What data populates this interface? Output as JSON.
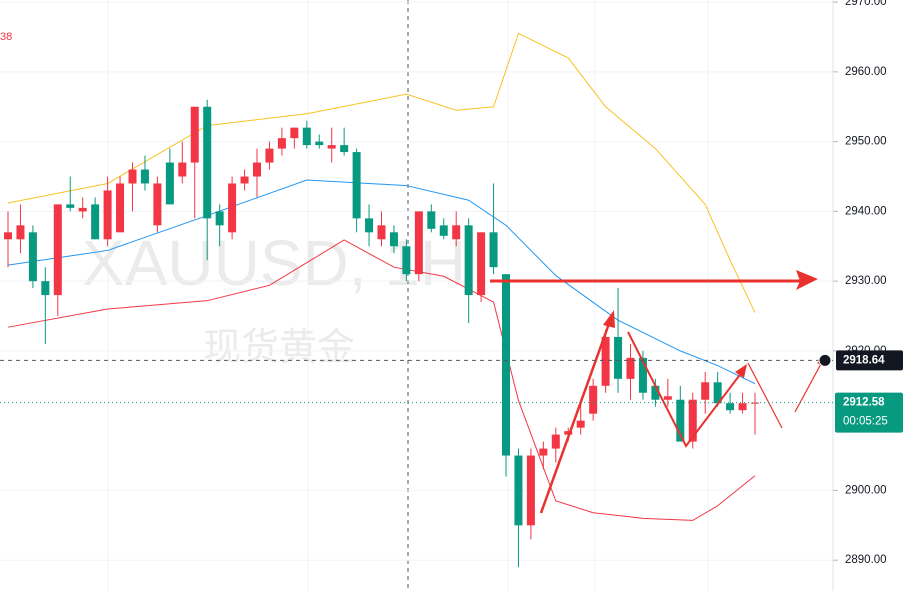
{
  "chart_data": {
    "type": "candlestick",
    "symbol_watermark": "XAUUSD, 1H",
    "name_watermark": "现货黄金",
    "indicator_value": "38",
    "ylim": [
      2886.3,
      2970.3
    ],
    "yticks": [
      {
        "value": 2970,
        "label": "2970.00"
      },
      {
        "value": 2960,
        "label": "2960.00"
      },
      {
        "value": 2950,
        "label": "2950.00"
      },
      {
        "value": 2940,
        "label": "2940.00"
      },
      {
        "value": 2930,
        "label": "2930.00"
      },
      {
        "value": 2920,
        "label": "2920.00"
      },
      {
        "value": 2900,
        "label": "2900.00"
      },
      {
        "value": 2890,
        "label": "2890.00"
      }
    ],
    "up_color": "#f23645",
    "down_color": "#089981",
    "open": [
      2936,
      2936,
      2937,
      2930,
      2928,
      2941,
      2940,
      2941,
      2936,
      2937,
      2944,
      2946,
      2938,
      2947,
      2945,
      2947,
      2955,
      2940,
      2937,
      2944,
      2945,
      2947,
      2949,
      2950.5,
      2952,
      2950,
      2949,
      2949.5,
      2948.5,
      2939,
      2936,
      2937,
      2935,
      2931,
      2940,
      2938,
      2936,
      2938,
      2928,
      2937,
      2931,
      2905,
      2895,
      2905,
      2906,
      2908,
      2909,
      2911,
      2915,
      2922,
      2916,
      2919,
      2915,
      2913,
      2913,
      2907,
      2913,
      2915.5,
      2912.5,
      2911.5,
      2912.5
    ],
    "high": [
      2940,
      2941,
      2938,
      2932,
      2941,
      2945,
      2942,
      2942,
      2945,
      2945,
      2947,
      2948,
      2945,
      2949,
      2950,
      2955,
      2956,
      2941,
      2945,
      2946,
      2949,
      2950,
      2952,
      2952,
      2953,
      2951,
      2952,
      2952,
      2949,
      2941,
      2940,
      2938,
      2936,
      2940,
      2941,
      2939,
      2940,
      2939,
      2937,
      2944,
      2931,
      2906,
      2906,
      2907,
      2909,
      2909,
      2913,
      2916,
      2923,
      2929,
      2921,
      2920,
      2916,
      2916,
      2915,
      2914,
      2917,
      2917,
      2914,
      2914,
      2914
    ],
    "low": [
      2932,
      2934,
      2929,
      2921,
      2925,
      2940,
      2939,
      2936,
      2935,
      2937,
      2940,
      2943,
      2937,
      2941,
      2944,
      2939,
      2933,
      2935,
      2936,
      2943,
      2942,
      2946,
      2948,
      2949,
      2949,
      2949,
      2947,
      2948,
      2937,
      2935,
      2935,
      2934,
      2930,
      2930,
      2937,
      2936,
      2935,
      2924,
      2927,
      2931,
      2902,
      2889,
      2893,
      2903,
      2904,
      2907,
      2908,
      2910,
      2914,
      2914,
      2913,
      2913,
      2912,
      2912,
      2907,
      2906,
      2911,
      2912,
      2911,
      2911,
      2908
    ],
    "close": [
      2937,
      2938,
      2930,
      2928,
      2941,
      2940.5,
      2940.5,
      2936,
      2943,
      2944,
      2946,
      2944,
      2944,
      2941,
      2947,
      2955,
      2939,
      2938,
      2944,
      2945,
      2947,
      2949,
      2950.5,
      2952,
      2949.5,
      2949.5,
      2949.5,
      2948.5,
      2939,
      2937,
      2938,
      2935,
      2931,
      2940,
      2937.5,
      2936.5,
      2938,
      2928,
      2937,
      2932,
      2905,
      2895,
      2905,
      2906,
      2908,
      2908.5,
      2910,
      2915,
      2922,
      2916,
      2919,
      2914,
      2913,
      2913.5,
      2907,
      2913,
      2915.5,
      2912.5,
      2911.5,
      2912.5,
      2912.58
    ],
    "bands": [
      {
        "color": "#f7c325",
        "x": [
          0,
          8,
          16,
          24,
          32,
          36,
          39,
          41,
          45,
          48,
          52,
          56,
          58,
          60
        ],
        "values": [
          2941.2,
          2944,
          2952.3,
          2954,
          2956.8,
          2954.5,
          2955,
          2965.5,
          2962,
          2955,
          2949,
          2941,
          2933,
          2925.5
        ]
      },
      {
        "color": "#2196f3",
        "x": [
          0,
          8,
          16,
          24,
          32,
          37,
          40,
          44,
          49,
          54,
          57,
          60
        ],
        "values": [
          2932.3,
          2934.4,
          2939.4,
          2944.5,
          2943.7,
          2941.6,
          2938,
          2930.8,
          2924.4,
          2920,
          2917.9,
          2915.3
        ]
      },
      {
        "color": "#f23645",
        "x": [
          0,
          8,
          16,
          21,
          27,
          31,
          35,
          39,
          41,
          44,
          47,
          51,
          55,
          57,
          60
        ],
        "values": [
          2923.4,
          2926,
          2927.2,
          2929.4,
          2935.9,
          2932,
          2930.7,
          2927,
          2912.9,
          2898.5,
          2896.8,
          2896,
          2895.7,
          2897.8,
          2902.1
        ]
      }
    ],
    "crosshair_price": 2918.64,
    "last_price": 2912.58,
    "countdown": "00:05:25"
  }
}
